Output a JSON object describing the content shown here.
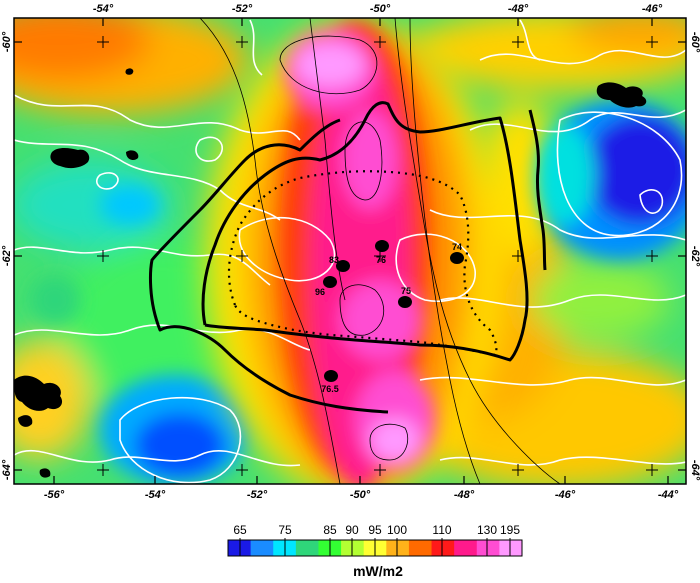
{
  "map": {
    "lon_labels_top": [
      "-54°",
      "-52°",
      "-50°",
      "-48°",
      "-46°"
    ],
    "lon_labels_bottom": [
      "-56°",
      "-54°",
      "-52°",
      "-50°",
      "-48°",
      "-46°",
      "-44°"
    ],
    "lat_labels_left": [
      "-60°",
      "-62°",
      "-64°"
    ],
    "lat_labels_right": [
      "-60°",
      "-62°",
      "-64°"
    ],
    "points": [
      {
        "label": "83"
      },
      {
        "label": "76"
      },
      {
        "label": "74"
      },
      {
        "label": "96"
      },
      {
        "label": "75"
      },
      {
        "label": "76.5"
      }
    ]
  },
  "colorbar": {
    "ticks": [
      "65",
      "75",
      "85",
      "90",
      "95",
      "100",
      "110",
      "130",
      "195"
    ],
    "unit": "mW/m2",
    "colors": [
      "#1a1ae6",
      "#1a8cff",
      "#00e6ff",
      "#2fd67a",
      "#33ff33",
      "#b3ff33",
      "#ffff33",
      "#ffb21a",
      "#ff6a00",
      "#ff1a1a",
      "#ff1a8c",
      "#ff4dd2",
      "#ff99ff"
    ]
  }
}
